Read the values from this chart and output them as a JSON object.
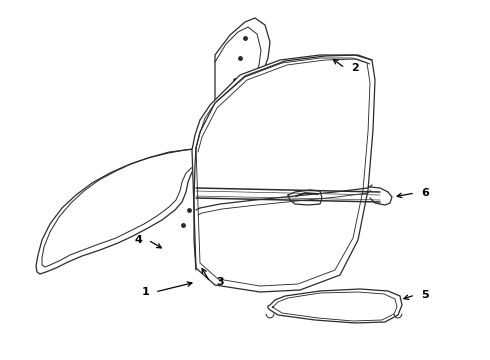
{
  "background_color": "#ffffff",
  "line_color": "#2a2a2a",
  "lw": 0.9,
  "figsize": [
    4.9,
    3.6
  ],
  "dpi": 100
}
